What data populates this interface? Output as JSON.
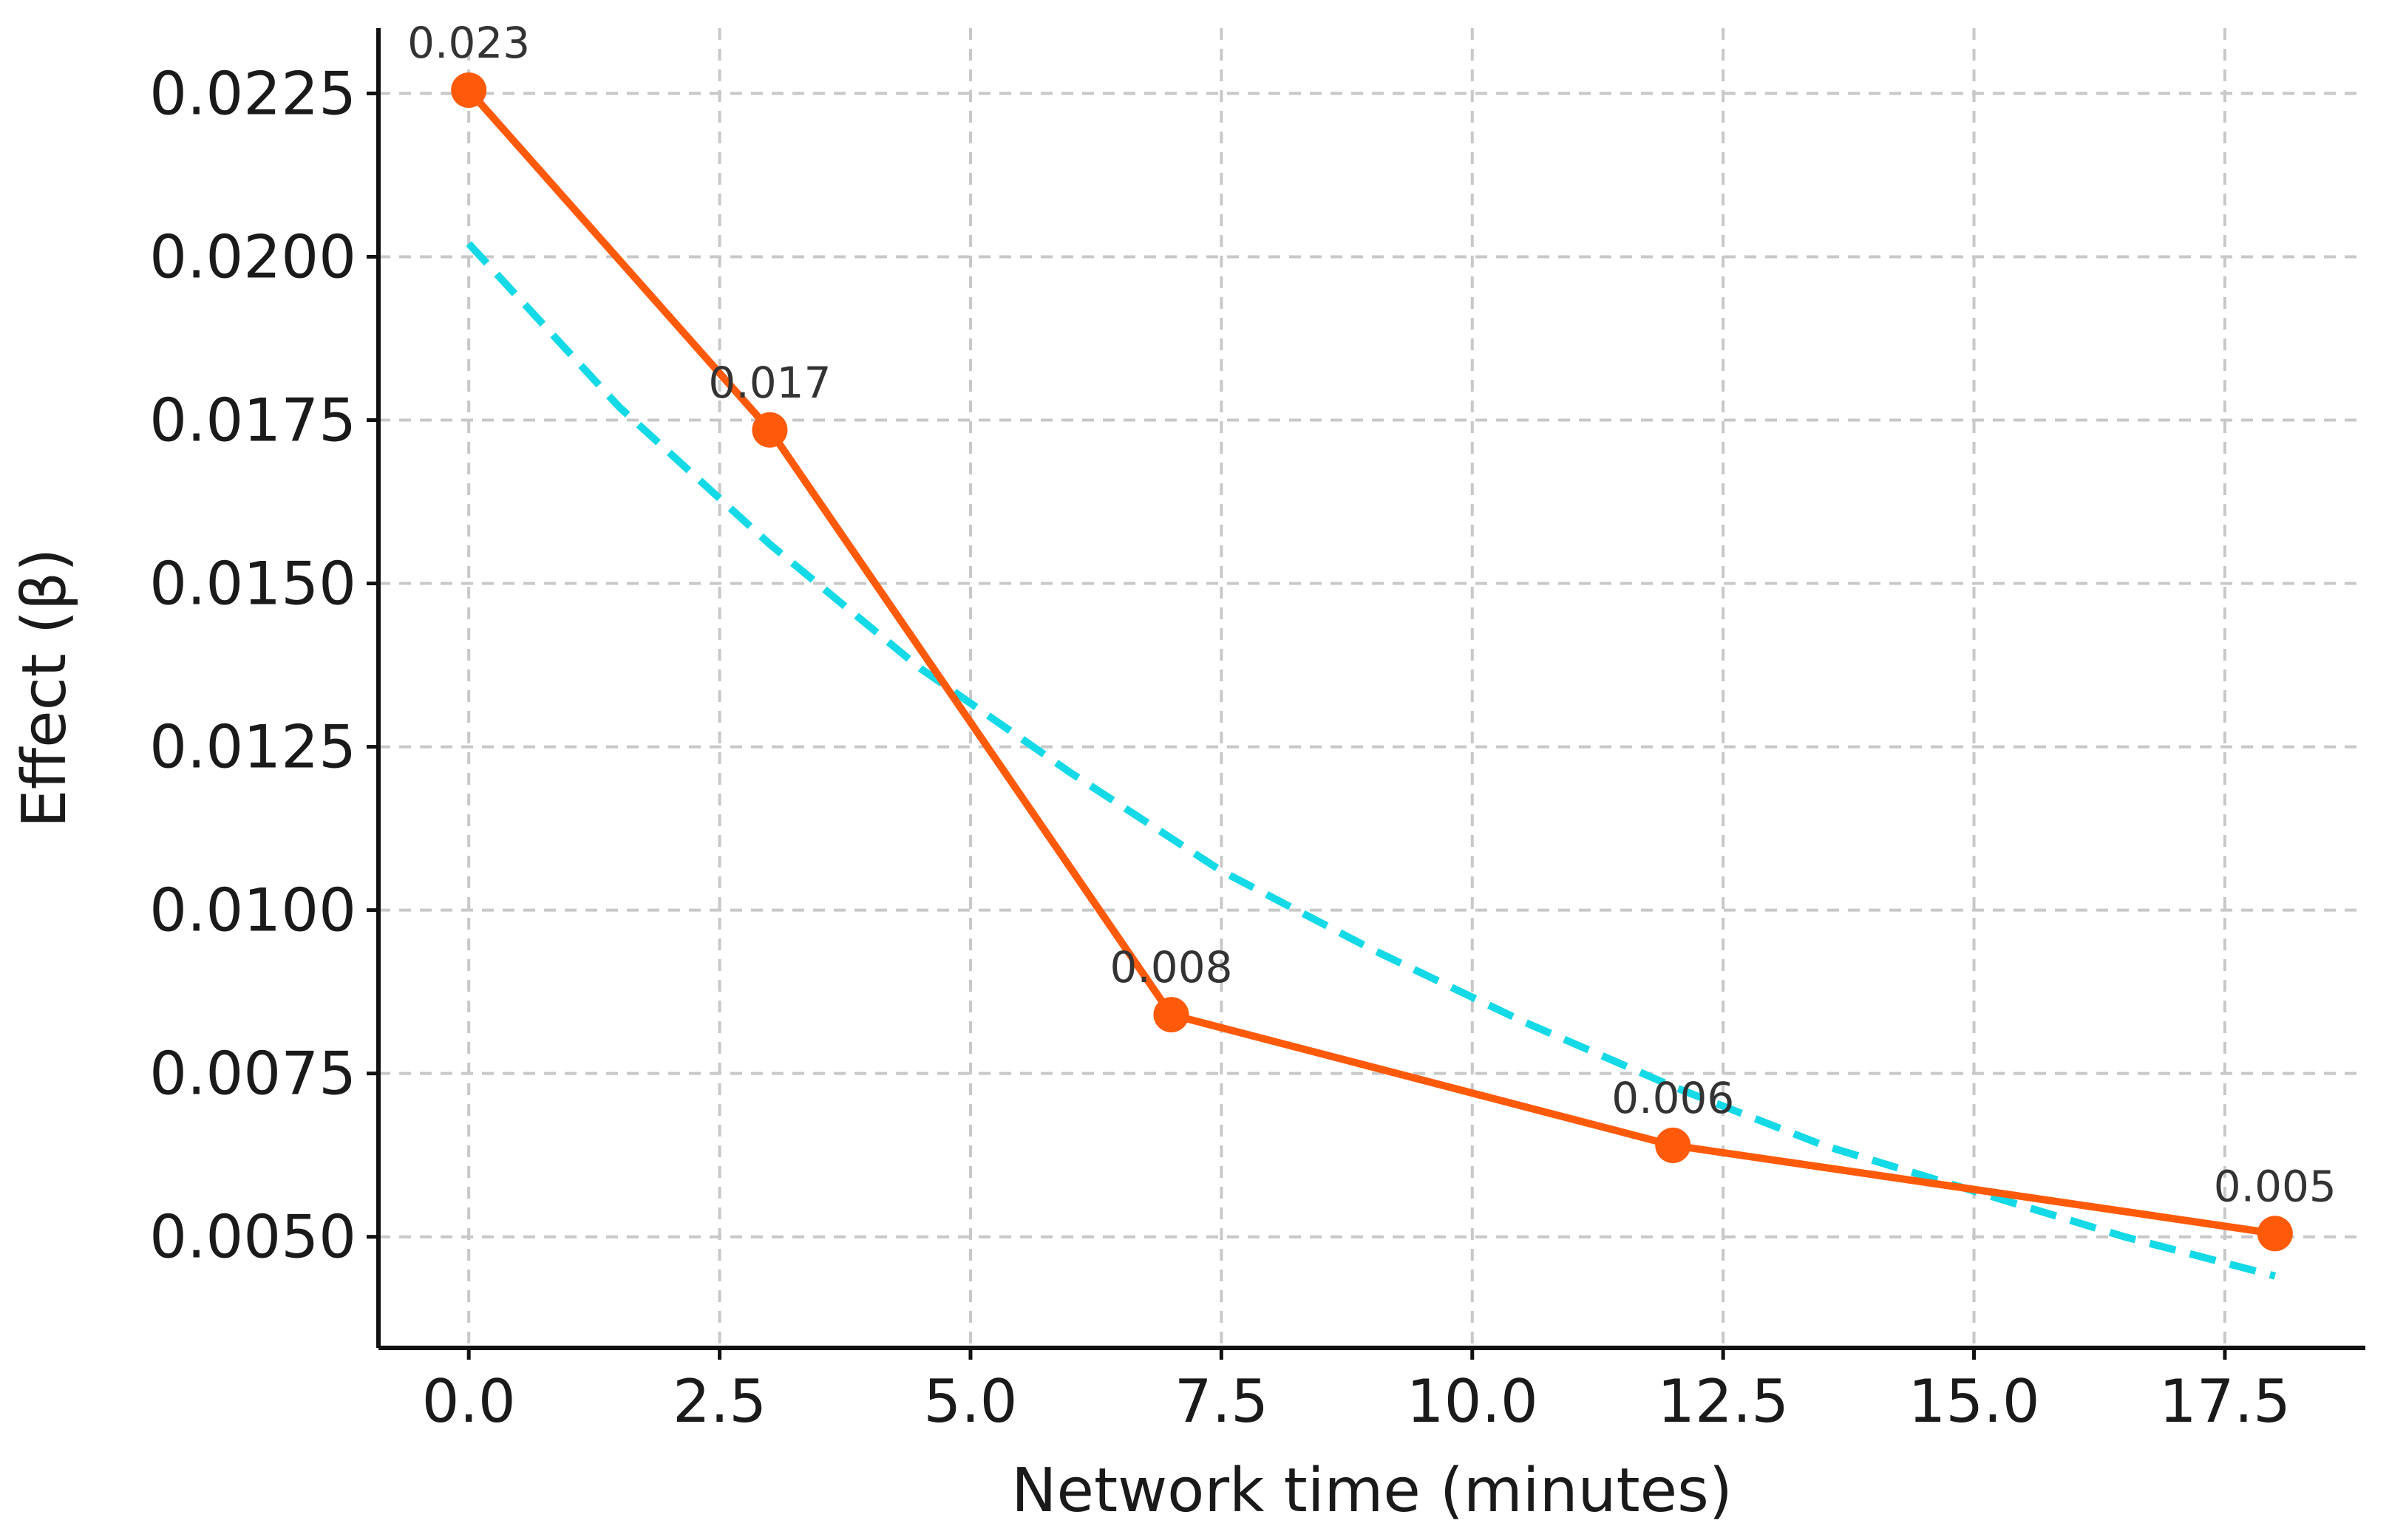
{
  "chart_data": {
    "type": "line",
    "title": "",
    "xlabel": "Network time (minutes)",
    "ylabel": "Effect (β)",
    "xlim": [
      -0.9,
      18.9
    ],
    "ylim": [
      0.0033,
      0.0235
    ],
    "x_ticks": [
      0,
      2.5,
      5,
      7.5,
      10,
      12.5,
      15,
      17.5
    ],
    "x_tick_labels": [
      "0.0",
      "2.5",
      "5.0",
      "7.5",
      "10.0",
      "12.5",
      "15.0",
      "17.5"
    ],
    "y_ticks": [
      0.005,
      0.0075,
      0.01,
      0.0125,
      0.015,
      0.0175,
      0.02,
      0.0225
    ],
    "y_tick_labels": [
      "0.0050",
      "0.0075",
      "0.0100",
      "0.0125",
      "0.0150",
      "0.0175",
      "0.0200",
      "0.0225"
    ],
    "grid": true,
    "series": [
      {
        "style": "solid-markers",
        "color": "#ff5a0a",
        "x": [
          0,
          3,
          7,
          12,
          18
        ],
        "y": [
          0.02255,
          0.01735,
          0.0084,
          0.0064,
          0.00505
        ],
        "labels": [
          "0.023",
          "0.017",
          "0.008",
          "0.006",
          "0.005"
        ]
      },
      {
        "style": "dashed-fit",
        "color": "#14d9e6",
        "x": [
          0,
          1.5,
          3,
          4.5,
          6,
          7.5,
          9,
          10.5,
          12,
          13.5,
          15,
          16.5,
          18
        ],
        "y": [
          0.0202,
          0.0177,
          0.0156,
          0.0137,
          0.0121,
          0.0106,
          0.0094,
          0.0083,
          0.0073,
          0.0064,
          0.0057,
          0.005,
          0.0044
        ]
      }
    ]
  }
}
